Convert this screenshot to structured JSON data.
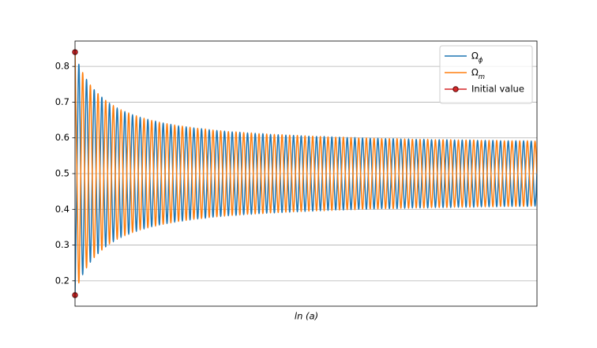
{
  "chart_data": {
    "type": "line",
    "x_label": "ln (a)",
    "ylim": [
      0.129,
      0.871
    ],
    "yticks": [
      0.2,
      0.3,
      0.4,
      0.5,
      0.6,
      0.7,
      0.8
    ],
    "grid": true,
    "legend": "upper right",
    "series": [
      {
        "name": "Ωϕ",
        "color": "#1f77b4",
        "style": "line",
        "values": [
          0.16,
          0.5,
          0.806,
          0.5,
          0.217,
          0.5,
          0.764,
          0.5,
          0.252,
          0.5,
          0.735,
          0.5,
          0.276,
          0.5,
          0.714,
          0.5,
          0.295,
          0.5,
          0.697,
          0.5,
          0.309,
          0.5,
          0.684,
          0.5,
          0.321,
          0.5,
          0.674,
          0.5,
          0.33,
          0.5,
          0.665,
          0.5,
          0.338,
          0.5,
          0.658,
          0.5,
          0.345,
          0.5,
          0.652,
          0.5,
          0.351,
          0.5,
          0.647,
          0.5,
          0.356,
          0.5,
          0.642,
          0.5,
          0.36,
          0.5,
          0.638,
          0.5,
          0.364,
          0.5,
          0.634,
          0.5,
          0.367,
          0.5,
          0.631,
          0.5,
          0.37,
          0.5,
          0.628,
          0.5,
          0.373,
          0.5,
          0.626,
          0.5,
          0.375,
          0.5,
          0.623,
          0.5,
          0.378,
          0.5,
          0.621,
          0.5,
          0.38,
          0.5,
          0.619,
          0.5,
          0.382,
          0.5,
          0.617,
          0.5,
          0.383,
          0.5,
          0.616,
          0.5,
          0.385,
          0.5,
          0.614,
          0.5,
          0.386,
          0.5,
          0.613,
          0.5,
          0.388,
          0.5,
          0.612,
          0.5,
          0.389,
          0.5,
          0.61,
          0.5,
          0.39,
          0.5,
          0.609,
          0.5,
          0.391,
          0.5,
          0.608,
          0.5,
          0.392,
          0.5,
          0.607,
          0.5,
          0.393,
          0.5,
          0.606,
          0.5,
          0.394,
          0.5,
          0.605,
          0.5,
          0.395,
          0.5,
          0.604,
          0.5,
          0.396,
          0.5,
          0.604,
          0.5,
          0.397,
          0.5,
          0.603,
          0.5,
          0.398,
          0.5,
          0.602,
          0.5,
          0.398,
          0.5,
          0.601,
          0.5,
          0.399,
          0.5,
          0.601,
          0.5,
          0.4,
          0.5,
          0.6,
          0.5,
          0.4,
          0.5,
          0.599,
          0.5,
          0.401,
          0.5,
          0.599,
          0.5,
          0.402,
          0.5,
          0.598,
          0.5,
          0.402,
          0.5,
          0.598,
          0.5,
          0.402,
          0.5,
          0.597,
          0.5,
          0.403,
          0.5,
          0.597,
          0.5,
          0.404,
          0.5,
          0.596,
          0.5,
          0.404,
          0.5,
          0.596,
          0.5,
          0.404,
          0.5,
          0.595,
          0.5,
          0.405,
          0.5,
          0.595,
          0.5,
          0.405,
          0.5,
          0.595,
          0.5,
          0.405,
          0.5,
          0.594,
          0.5,
          0.406,
          0.5,
          0.594,
          0.5,
          0.406,
          0.5,
          0.594,
          0.5,
          0.406,
          0.5,
          0.593,
          0.5,
          0.407,
          0.5,
          0.593,
          0.5,
          0.407,
          0.5,
          0.593,
          0.5,
          0.407,
          0.5,
          0.592,
          0.5,
          0.408,
          0.5,
          0.592,
          0.5,
          0.408,
          0.5,
          0.592,
          0.5,
          0.408,
          0.5,
          0.592,
          0.5,
          0.408,
          0.5,
          0.591,
          0.5,
          0.409,
          0.5
        ]
      },
      {
        "name": "Ωm",
        "color": "#ff7f0e",
        "style": "line",
        "values": [
          0.84,
          0.5,
          0.194,
          0.5,
          0.783,
          0.5,
          0.236,
          0.5,
          0.748,
          0.5,
          0.265,
          0.5,
          0.724,
          0.5,
          0.286,
          0.5,
          0.705,
          0.5,
          0.303,
          0.5,
          0.691,
          0.5,
          0.316,
          0.5,
          0.679,
          0.5,
          0.326,
          0.5,
          0.67,
          0.5,
          0.335,
          0.5,
          0.662,
          0.5,
          0.342,
          0.5,
          0.655,
          0.5,
          0.348,
          0.5,
          0.649,
          0.5,
          0.353,
          0.5,
          0.644,
          0.5,
          0.358,
          0.5,
          0.64,
          0.5,
          0.362,
          0.5,
          0.636,
          0.5,
          0.366,
          0.5,
          0.633,
          0.5,
          0.369,
          0.5,
          0.63,
          0.5,
          0.372,
          0.5,
          0.627,
          0.5,
          0.374,
          0.5,
          0.625,
          0.5,
          0.377,
          0.5,
          0.622,
          0.5,
          0.379,
          0.5,
          0.62,
          0.5,
          0.381,
          0.5,
          0.618,
          0.5,
          0.383,
          0.5,
          0.617,
          0.5,
          0.384,
          0.5,
          0.615,
          0.5,
          0.386,
          0.5,
          0.614,
          0.5,
          0.387,
          0.5,
          0.612,
          0.5,
          0.388,
          0.5,
          0.611,
          0.5,
          0.39,
          0.5,
          0.61,
          0.5,
          0.391,
          0.5,
          0.609,
          0.5,
          0.392,
          0.5,
          0.608,
          0.5,
          0.393,
          0.5,
          0.607,
          0.5,
          0.394,
          0.5,
          0.606,
          0.5,
          0.395,
          0.5,
          0.605,
          0.5,
          0.396,
          0.5,
          0.604,
          0.5,
          0.396,
          0.5,
          0.603,
          0.5,
          0.397,
          0.5,
          0.602,
          0.5,
          0.398,
          0.5,
          0.602,
          0.5,
          0.399,
          0.5,
          0.601,
          0.5,
          0.399,
          0.5,
          0.6,
          0.5,
          0.4,
          0.5,
          0.6,
          0.5,
          0.401,
          0.5,
          0.599,
          0.5,
          0.401,
          0.5,
          0.598,
          0.5,
          0.402,
          0.5,
          0.598,
          0.5,
          0.402,
          0.5,
          0.598,
          0.5,
          0.403,
          0.5,
          0.597,
          0.5,
          0.403,
          0.5,
          0.596,
          0.5,
          0.404,
          0.5,
          0.596,
          0.5,
          0.404,
          0.5,
          0.596,
          0.5,
          0.405,
          0.5,
          0.595,
          0.5,
          0.405,
          0.5,
          0.595,
          0.5,
          0.405,
          0.5,
          0.595,
          0.5,
          0.406,
          0.5,
          0.594,
          0.5,
          0.406,
          0.5,
          0.594,
          0.5,
          0.406,
          0.5,
          0.594,
          0.5,
          0.407,
          0.5,
          0.593,
          0.5,
          0.407,
          0.5,
          0.593,
          0.5,
          0.407,
          0.5,
          0.593,
          0.5,
          0.408,
          0.5,
          0.592,
          0.5,
          0.408,
          0.5,
          0.592,
          0.5,
          0.408,
          0.5,
          0.592,
          0.5,
          0.408,
          0.5,
          0.592,
          0.5,
          0.409,
          0.5,
          0.591,
          0.5
        ]
      },
      {
        "name": "Initial value",
        "color": "#d62728",
        "style": "markers",
        "values": [
          0.84,
          0.16
        ]
      }
    ]
  }
}
